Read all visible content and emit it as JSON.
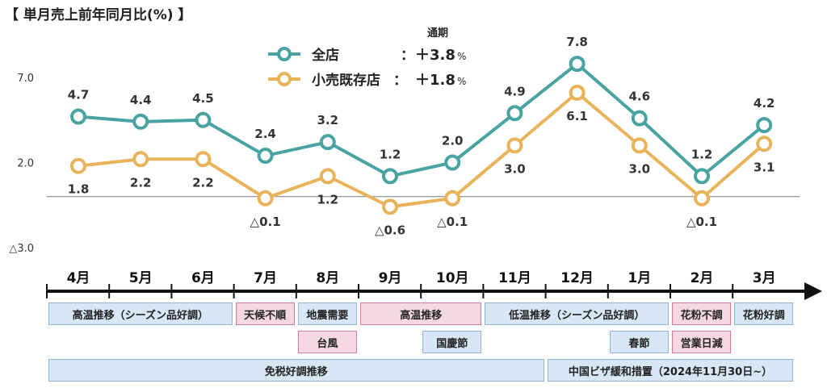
{
  "chart_data": {
    "type": "line",
    "title": "【 単月売上前年同月比(%) 】",
    "categories": [
      "4月",
      "5月",
      "6月",
      "7月",
      "8月",
      "9月",
      "10月",
      "11月",
      "12月",
      "1月",
      "2月",
      "3月"
    ],
    "ylim": [
      -3.0,
      9.0
    ],
    "y_ticks": [
      {
        "value": 7.0,
        "label": "7.0"
      },
      {
        "value": 2.0,
        "label": "2.0"
      },
      {
        "value": -3.0,
        "label": "△3.0"
      }
    ],
    "legend_header": "通期",
    "series": [
      {
        "name": "全店",
        "legend_sep": "：",
        "annual": "＋3.8",
        "annual_unit": "%",
        "color": "#4aa3a3",
        "values": [
          4.7,
          4.4,
          4.5,
          2.4,
          3.2,
          1.2,
          2.0,
          4.9,
          7.8,
          4.6,
          1.2,
          4.2
        ],
        "labels": [
          "4.7",
          "4.4",
          "4.5",
          "2.4",
          "3.2",
          "1.2",
          "2.0",
          "4.9",
          "7.8",
          "4.6",
          "1.2",
          "4.2"
        ]
      },
      {
        "name": "小売既存店",
        "legend_sep": "：",
        "annual": "＋1.8",
        "annual_unit": "%",
        "color": "#e9b35a",
        "values": [
          1.8,
          2.2,
          2.2,
          -0.1,
          1.2,
          -0.6,
          -0.1,
          3.0,
          6.1,
          3.0,
          -0.1,
          3.1
        ],
        "labels": [
          "1.8",
          "2.2",
          "2.2",
          "△0.1",
          "1.2",
          "△0.6",
          "△0.1",
          "3.0",
          "6.1",
          "3.0",
          "△0.1",
          "3.1"
        ]
      }
    ]
  },
  "events": [
    {
      "label": "高温推移（シーズン品好調）",
      "start": 0,
      "end": 2,
      "row": 0,
      "color": "blue"
    },
    {
      "label": "天候不順",
      "start": 3,
      "end": 3,
      "row": 0,
      "color": "pink"
    },
    {
      "label": "地震需要",
      "start": 4,
      "end": 4,
      "row": 0,
      "color": "blue"
    },
    {
      "label": "高温推移",
      "start": 5,
      "end": 6,
      "row": 0,
      "color": "pink"
    },
    {
      "label": "低温推移（シーズン品好調）",
      "start": 7,
      "end": 9,
      "row": 0,
      "color": "blue"
    },
    {
      "label": "花粉不調",
      "start": 10,
      "end": 10,
      "row": 0,
      "color": "pink"
    },
    {
      "label": "花粉好調",
      "start": 11,
      "end": 11,
      "row": 0,
      "color": "blue"
    },
    {
      "label": "台風",
      "start": 4,
      "end": 4,
      "row": 1,
      "color": "pink"
    },
    {
      "label": "国慶節",
      "start": 6,
      "end": 6,
      "row": 1,
      "color": "blue"
    },
    {
      "label": "春節",
      "start": 9,
      "end": 9,
      "row": 1,
      "color": "blue"
    },
    {
      "label": "営業日減",
      "start": 10,
      "end": 10,
      "row": 1,
      "color": "pink"
    },
    {
      "label": "免税好調推移",
      "start": 0,
      "end": 7,
      "row": 2,
      "color": "blue"
    },
    {
      "label": "中国ビザ緩和措置（2024年11月30日~）",
      "start": 8,
      "end": 11,
      "row": 2,
      "color": "blue"
    }
  ]
}
